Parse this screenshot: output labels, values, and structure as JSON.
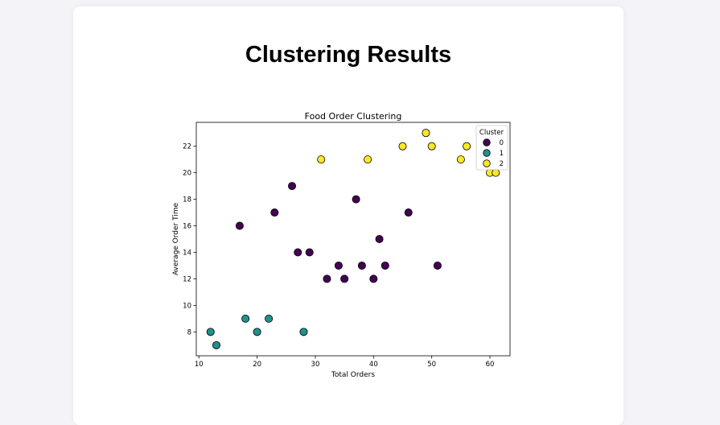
{
  "page": {
    "title": "Clustering Results"
  },
  "chart_data": {
    "type": "scatter",
    "title": "Food Order Clustering",
    "xlabel": "Total Orders",
    "ylabel": "Average Order Time",
    "xlim": [
      9.55,
      63.45
    ],
    "ylim": [
      6.2,
      23.8
    ],
    "xticks": [
      10,
      20,
      30,
      40,
      50,
      60
    ],
    "yticks": [
      8,
      10,
      12,
      14,
      16,
      18,
      20,
      22
    ],
    "grid": false,
    "legend": {
      "title": "Cluster",
      "placement": "top-right",
      "entries": [
        "0",
        "1",
        "2"
      ]
    },
    "colors": {
      "0": "#440154",
      "1": "#21918c",
      "2": "#fde725"
    },
    "series": [
      {
        "name": "0",
        "points": [
          [
            17,
            16
          ],
          [
            23,
            17
          ],
          [
            26,
            19
          ],
          [
            27,
            14
          ],
          [
            29,
            14
          ],
          [
            32,
            12
          ],
          [
            34,
            13
          ],
          [
            35,
            12
          ],
          [
            37,
            18
          ],
          [
            38,
            13
          ],
          [
            40,
            12
          ],
          [
            41,
            15
          ],
          [
            42,
            13
          ],
          [
            46,
            17
          ],
          [
            51,
            13
          ]
        ]
      },
      {
        "name": "1",
        "points": [
          [
            12,
            8
          ],
          [
            13,
            7
          ],
          [
            18,
            9
          ],
          [
            20,
            8
          ],
          [
            22,
            9
          ],
          [
            28,
            8
          ]
        ]
      },
      {
        "name": "2",
        "points": [
          [
            31,
            21
          ],
          [
            39,
            21
          ],
          [
            45,
            22
          ],
          [
            49,
            23
          ],
          [
            50,
            22
          ],
          [
            55,
            21
          ],
          [
            56,
            22
          ],
          [
            60,
            20
          ],
          [
            61,
            20
          ]
        ]
      }
    ]
  }
}
